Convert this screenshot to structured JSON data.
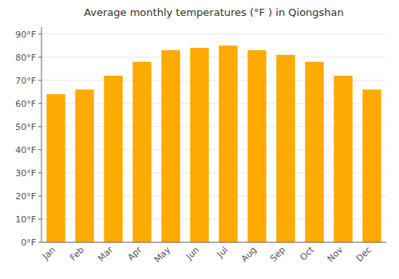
{
  "chart_data": {
    "type": "bar",
    "title": "Average monthly temperatures (°F ) in Qiongshan",
    "categories": [
      "Jan",
      "Feb",
      "Mar",
      "Apr",
      "May",
      "Jun",
      "Jul",
      "Aug",
      "Sep",
      "Oct",
      "Nov",
      "Dec"
    ],
    "values": [
      64,
      66,
      72,
      78,
      83,
      84,
      85,
      83,
      81,
      78,
      72,
      66
    ],
    "color": "#FFAA00",
    "ylim": [
      0,
      93
    ],
    "yticks": [
      {
        "value": 0,
        "label": "0°F"
      },
      {
        "value": 10,
        "label": "10°F"
      },
      {
        "value": 20,
        "label": "20°F"
      },
      {
        "value": 30,
        "label": "30°F"
      },
      {
        "value": 40,
        "label": "40°F"
      },
      {
        "value": 50,
        "label": "50°F"
      },
      {
        "value": 60,
        "label": "60°F"
      },
      {
        "value": 70,
        "label": "70°F"
      },
      {
        "value": 80,
        "label": "80°F"
      },
      {
        "value": 90,
        "label": "90°F"
      }
    ],
    "grid": true
  }
}
